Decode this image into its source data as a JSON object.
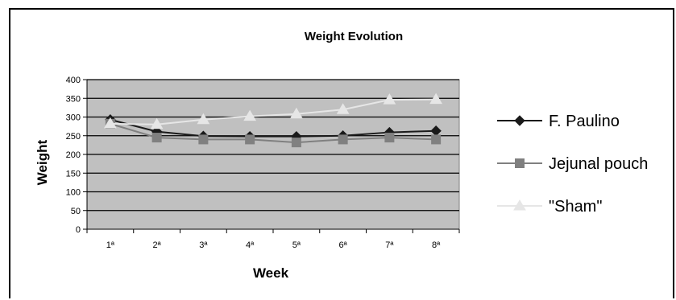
{
  "chart_data": {
    "type": "line",
    "title": "Weight Evolution",
    "xlabel": "Week",
    "ylabel": "Weight",
    "categories": [
      "1ª",
      "2ª",
      "3ª",
      "4ª",
      "5ª",
      "6ª",
      "7ª",
      "8ª"
    ],
    "ylim": [
      0,
      400
    ],
    "yticks": [
      "0",
      "50",
      "100",
      "150",
      "200",
      "250",
      "300",
      "350",
      "400"
    ],
    "grid": true,
    "legend_position": "right",
    "plot_background": "#c0c0c0",
    "series": [
      {
        "name": "F. Paulino",
        "marker": "diamond",
        "color": "#1a1a1a",
        "values": [
          293,
          261,
          249,
          248,
          248,
          250,
          259,
          263
        ]
      },
      {
        "name": "Jejunal pouch",
        "marker": "square",
        "color": "#808080",
        "values": [
          282,
          245,
          240,
          240,
          232,
          240,
          245,
          240
        ]
      },
      {
        "name": "\"Sham\"",
        "marker": "triangle",
        "color": "#e6e6e6",
        "values": [
          282,
          280,
          293,
          302,
          308,
          320,
          346,
          347
        ]
      }
    ]
  }
}
